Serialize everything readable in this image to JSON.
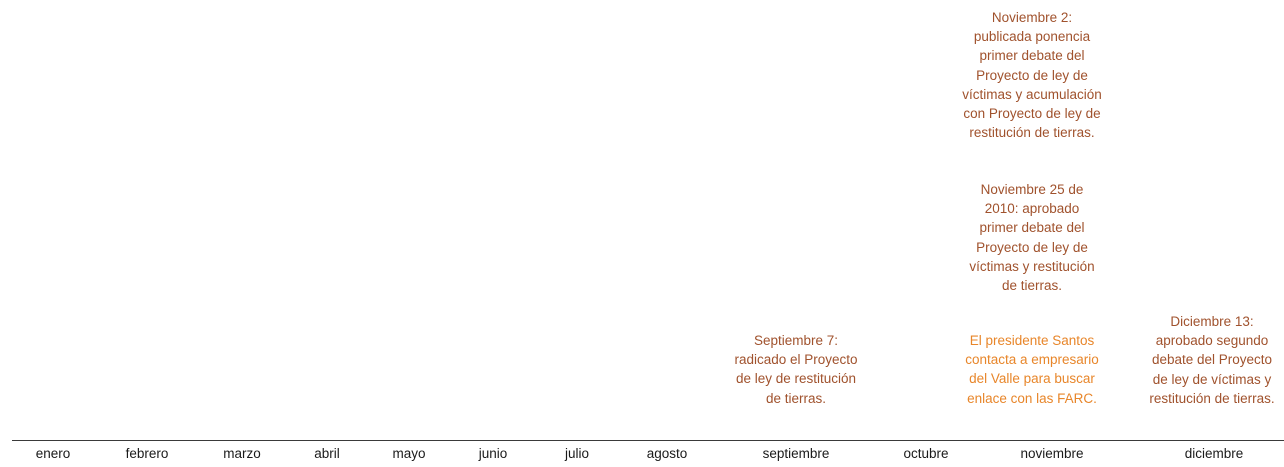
{
  "colors": {
    "event_text": "#a0522d",
    "highlight_text": "#e8862a",
    "axis": "#3a3a3a",
    "month_text": "#1a1a1a"
  },
  "months": [
    "enero",
    "febrero",
    "marzo",
    "abril",
    "mayo",
    "junio",
    "julio",
    "agosto",
    "septiembre",
    "octubre",
    "noviembre",
    "diciembre"
  ],
  "events": {
    "sep7": [
      "Septiembre 7:",
      "radicado el Proyecto",
      "de ley de restitución",
      "de tierras."
    ],
    "nov2": [
      "Noviembre 2:",
      "publicada ponencia",
      "primer debate del",
      "Proyecto de ley de",
      "víctimas y acumulación",
      "con Proyecto de ley de",
      "restitución de tierras."
    ],
    "nov25": [
      "Noviembre 25 de",
      "2010: aprobado",
      "primer debate del",
      "Proyecto de ley de",
      "víctimas y restitución",
      "de tierras."
    ],
    "santos": [
      "El presidente Santos",
      "contacta a empresario",
      "del Valle para buscar",
      "enlace con las FARC."
    ],
    "dec13": [
      "Diciembre 13:",
      "aprobado segundo",
      "debate del Proyecto",
      "de ley de víctimas y",
      "restitución de tierras."
    ]
  }
}
